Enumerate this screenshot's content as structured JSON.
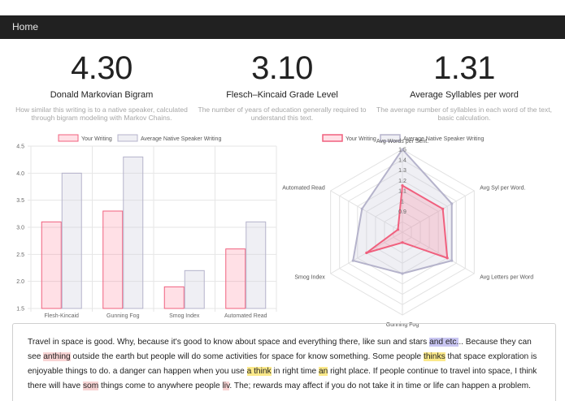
{
  "nav": {
    "home": "Home"
  },
  "colors": {
    "your": "#f0607e",
    "your_fill": "rgba(255,99,132,0.2)",
    "native": "#b5b3cb",
    "native_fill": "rgba(201,203,220,0.3)"
  },
  "metrics": [
    {
      "value": "4.30",
      "label": "Donald Markovian Bigram",
      "description": "How similar this writing is to a native speaker, calculated through bigram modeling with Markov Chains."
    },
    {
      "value": "3.10",
      "label": "Flesch–Kincaid Grade Level",
      "description": "The number of years of education generally required to understand this text."
    },
    {
      "value": "1.31",
      "label": "Average Syllables per word",
      "description": "The average number of syllables in each word of the text, basic calculation."
    }
  ],
  "bar_legend": {
    "your": "Your Writing",
    "native": "Average Native Speaker Writing"
  },
  "radar_legend": {
    "your": "Your Writing",
    "native": "Average Native Speaker Writing"
  },
  "chart_data": [
    {
      "type": "bar",
      "categories": [
        "Flesh-Kincaid",
        "Gunning Fog",
        "Smog Index",
        "Automated Read"
      ],
      "series": [
        {
          "name": "Your Writing",
          "values": [
            3.1,
            3.3,
            1.9,
            2.6
          ]
        },
        {
          "name": "Average Native Speaker Writing",
          "values": [
            4.0,
            4.3,
            2.2,
            3.1
          ]
        }
      ],
      "ylim": [
        1.5,
        4.5
      ],
      "yticks": [
        "4.5",
        "4.0",
        "3.5",
        "3.0",
        "2.5",
        "2.0",
        "1.5"
      ]
    },
    {
      "type": "radar",
      "axes": [
        "Avg Words per Sent.",
        "Avg Syl per Word.",
        "Avg Letters per Word",
        "Gunning Fog",
        "Smog Index",
        "Automated Read"
      ],
      "series": [
        {
          "name": "Your Writing",
          "values": [
            1.15,
            1.15,
            1.2,
            0.8,
            1.1,
            0.75
          ]
        },
        {
          "name": "Average Native Speaker Writing",
          "values": [
            1.5,
            1.25,
            1.25,
            1.1,
            1.25,
            1.15
          ]
        }
      ],
      "rlim": [
        0.7,
        1.5
      ],
      "rticks": [
        "0.9",
        "1",
        "1.1",
        "1.2",
        "1.3",
        "1.4",
        "1.5"
      ]
    }
  ],
  "text": {
    "p1": "Travel in space is good. Why, because it's good to know about space and everything there, like sun and stars ",
    "h1": "and etc.",
    "p2": ".. Because they can see ",
    "h2": "anthing",
    "p3": " outside the earth but people will do some activities for space for know something. Some people ",
    "h3": "thinks",
    "p4": " that space exploration is enjoyable things to do. a danger can happen when you use ",
    "h4": "a think",
    "p5": " in right time ",
    "h5": "an",
    "p6": " right place. If people continue to travel into space, I think there will have ",
    "h6": "som",
    "p7": " things come to anywhere people ",
    "h7": "liv",
    "p8": ". The; rewards may affect if you do not take it in time or life can happen a problem."
  }
}
